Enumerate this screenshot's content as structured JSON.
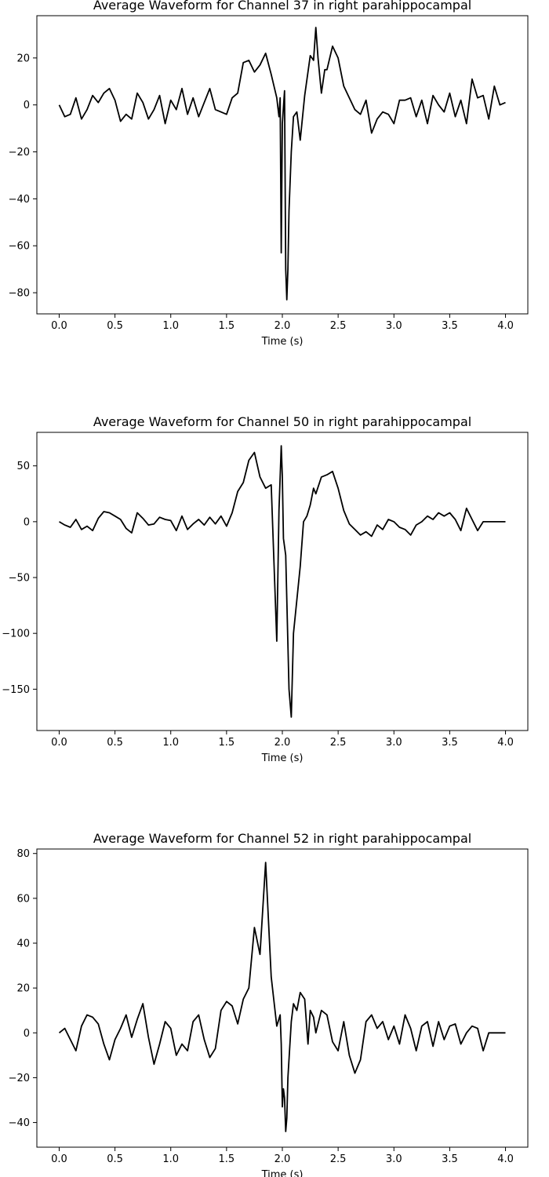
{
  "chart_data": [
    {
      "type": "line",
      "title": "Average Waveform for Channel 37 in  right parahippocampal",
      "xlabel": "Time (s)",
      "ylabel": "",
      "xlim": [
        -0.2,
        4.2
      ],
      "ylim": [
        -89,
        38
      ],
      "xticks": [
        0.0,
        0.5,
        1.0,
        1.5,
        2.0,
        2.5,
        3.0,
        3.5,
        4.0
      ],
      "xtick_labels": [
        "0.0",
        "0.5",
        "1.0",
        "1.5",
        "2.0",
        "2.5",
        "3.0",
        "3.5",
        "4.0"
      ],
      "yticks": [
        20,
        0,
        -20,
        -40,
        -60,
        -80
      ],
      "ytick_labels": [
        "20",
        "0",
        "−20",
        "−40",
        "−60",
        "−80"
      ],
      "grid": false,
      "series": [
        {
          "color": "#000000",
          "x": [
            0.0,
            0.05,
            0.1,
            0.15,
            0.2,
            0.25,
            0.3,
            0.35,
            0.4,
            0.45,
            0.5,
            0.55,
            0.6,
            0.65,
            0.7,
            0.75,
            0.8,
            0.85,
            0.9,
            0.95,
            1.0,
            1.05,
            1.1,
            1.15,
            1.2,
            1.25,
            1.3,
            1.35,
            1.4,
            1.45,
            1.5,
            1.55,
            1.6,
            1.65,
            1.7,
            1.75,
            1.8,
            1.85,
            1.9,
            1.95,
            1.97,
            1.98,
            1.99,
            2.0,
            2.02,
            2.03,
            2.04,
            2.05,
            2.06,
            2.08,
            2.1,
            2.13,
            2.16,
            2.2,
            2.25,
            2.28,
            2.3,
            2.32,
            2.35,
            2.38,
            2.4,
            2.45,
            2.5,
            2.55,
            2.6,
            2.65,
            2.7,
            2.75,
            2.8,
            2.85,
            2.9,
            2.95,
            3.0,
            3.05,
            3.1,
            3.15,
            3.2,
            3.25,
            3.3,
            3.35,
            3.4,
            3.45,
            3.5,
            3.55,
            3.6,
            3.65,
            3.7,
            3.75,
            3.8,
            3.85,
            3.9,
            3.95,
            4.0
          ],
          "values": [
            0,
            -5,
            -4,
            3,
            -6,
            -2,
            4,
            1,
            5,
            7,
            2,
            -7,
            -4,
            -6,
            5,
            1,
            -6,
            -2,
            4,
            -8,
            2,
            -2,
            7,
            -4,
            3,
            -5,
            1,
            7,
            -2,
            -3,
            -4,
            3,
            5,
            18,
            19,
            14,
            17,
            22,
            13,
            3,
            -5,
            3,
            -63,
            -8,
            6,
            -70,
            -83,
            -70,
            -45,
            -20,
            -5,
            -3,
            -15,
            4,
            21,
            19,
            33,
            20,
            5,
            15,
            15,
            25,
            20,
            8,
            3,
            -2,
            -4,
            2,
            -12,
            -6,
            -3,
            -4,
            -8,
            2,
            2,
            3,
            -5,
            2,
            -8,
            4,
            0,
            -3,
            5,
            -5,
            2,
            -8,
            11,
            3,
            4,
            -6,
            8,
            0,
            1
          ]
        }
      ]
    },
    {
      "type": "line",
      "title": "Average Waveform for Channel 50 in  right parahippocampal",
      "xlabel": "Time (s)",
      "ylabel": "",
      "xlim": [
        -0.2,
        4.2
      ],
      "ylim": [
        -187,
        80
      ],
      "xticks": [
        0.0,
        0.5,
        1.0,
        1.5,
        2.0,
        2.5,
        3.0,
        3.5,
        4.0
      ],
      "xtick_labels": [
        "0.0",
        "0.5",
        "1.0",
        "1.5",
        "2.0",
        "2.5",
        "3.0",
        "3.5",
        "4.0"
      ],
      "yticks": [
        50,
        0,
        -50,
        -100,
        -150
      ],
      "ytick_labels": [
        "50",
        "0",
        "−50",
        "−100",
        "−150"
      ],
      "grid": false,
      "series": [
        {
          "color": "#000000",
          "x": [
            0.0,
            0.05,
            0.1,
            0.15,
            0.2,
            0.25,
            0.3,
            0.35,
            0.4,
            0.45,
            0.5,
            0.55,
            0.6,
            0.65,
            0.7,
            0.75,
            0.8,
            0.85,
            0.9,
            0.95,
            1.0,
            1.05,
            1.1,
            1.15,
            1.2,
            1.25,
            1.3,
            1.35,
            1.4,
            1.45,
            1.5,
            1.55,
            1.6,
            1.65,
            1.7,
            1.75,
            1.8,
            1.85,
            1.9,
            1.95,
            1.97,
            1.99,
            2.0,
            2.01,
            2.03,
            2.05,
            2.06,
            2.08,
            2.1,
            2.13,
            2.16,
            2.19,
            2.22,
            2.25,
            2.28,
            2.3,
            2.35,
            2.4,
            2.45,
            2.5,
            2.55,
            2.6,
            2.65,
            2.7,
            2.75,
            2.8,
            2.85,
            2.9,
            2.95,
            3.0,
            3.05,
            3.1,
            3.15,
            3.2,
            3.25,
            3.3,
            3.35,
            3.4,
            3.45,
            3.5,
            3.55,
            3.6,
            3.65,
            3.7,
            3.75,
            3.8,
            3.85,
            3.9,
            3.95,
            4.0
          ],
          "values": [
            0,
            -3,
            -5,
            2,
            -7,
            -4,
            -8,
            3,
            9,
            8,
            5,
            2,
            -6,
            -10,
            8,
            3,
            -3,
            -2,
            4,
            2,
            1,
            -8,
            5,
            -7,
            -2,
            2,
            -3,
            4,
            -2,
            5,
            -4,
            8,
            27,
            35,
            55,
            62,
            40,
            30,
            33,
            -107,
            10,
            68,
            40,
            -15,
            -30,
            -110,
            -150,
            -175,
            -100,
            -70,
            -40,
            0,
            5,
            15,
            30,
            25,
            40,
            42,
            45,
            30,
            10,
            -2,
            -7,
            -12,
            -9,
            -13,
            -3,
            -7,
            2,
            0,
            -5,
            -7,
            -12,
            -3,
            0,
            5,
            2,
            8,
            5,
            8,
            2,
            -8,
            12,
            2,
            -8,
            0,
            0,
            0,
            0,
            0
          ]
        }
      ]
    },
    {
      "type": "line",
      "title": "Average Waveform for Channel 52 in  right parahippocampal",
      "xlabel": "Time (s)",
      "ylabel": "",
      "xlim": [
        -0.2,
        4.2
      ],
      "ylim": [
        -51,
        82
      ],
      "xticks": [
        0.0,
        0.5,
        1.0,
        1.5,
        2.0,
        2.5,
        3.0,
        3.5,
        4.0
      ],
      "xtick_labels": [
        "0.0",
        "0.5",
        "1.0",
        "1.5",
        "2.0",
        "2.5",
        "3.0",
        "3.5",
        "4.0"
      ],
      "yticks": [
        80,
        60,
        40,
        20,
        0,
        -20,
        -40
      ],
      "ytick_labels": [
        "80",
        "60",
        "40",
        "20",
        "0",
        "−20",
        "−40"
      ],
      "grid": false,
      "series": [
        {
          "color": "#000000",
          "x": [
            0.0,
            0.05,
            0.1,
            0.15,
            0.2,
            0.25,
            0.3,
            0.35,
            0.4,
            0.45,
            0.5,
            0.55,
            0.6,
            0.65,
            0.7,
            0.75,
            0.8,
            0.85,
            0.9,
            0.95,
            1.0,
            1.05,
            1.1,
            1.15,
            1.2,
            1.25,
            1.3,
            1.35,
            1.4,
            1.45,
            1.5,
            1.55,
            1.6,
            1.65,
            1.7,
            1.75,
            1.8,
            1.85,
            1.9,
            1.95,
            1.98,
            1.99,
            2.0,
            2.01,
            2.02,
            2.03,
            2.04,
            2.05,
            2.08,
            2.1,
            2.13,
            2.16,
            2.2,
            2.23,
            2.25,
            2.28,
            2.3,
            2.35,
            2.4,
            2.45,
            2.5,
            2.55,
            2.6,
            2.65,
            2.7,
            2.75,
            2.8,
            2.85,
            2.9,
            2.95,
            3.0,
            3.05,
            3.1,
            3.15,
            3.2,
            3.25,
            3.3,
            3.35,
            3.4,
            3.45,
            3.5,
            3.55,
            3.6,
            3.65,
            3.7,
            3.75,
            3.8,
            3.85,
            3.9,
            3.95,
            4.0
          ],
          "values": [
            0,
            2,
            -3,
            -8,
            3,
            8,
            7,
            4,
            -5,
            -12,
            -3,
            2,
            8,
            -2,
            6,
            13,
            -2,
            -14,
            -5,
            5,
            2,
            -10,
            -5,
            -8,
            5,
            8,
            -3,
            -11,
            -7,
            10,
            14,
            12,
            4,
            15,
            20,
            47,
            35,
            76,
            25,
            3,
            8,
            -5,
            -33,
            -25,
            -29,
            -44,
            -38,
            -20,
            5,
            13,
            10,
            18,
            15,
            -5,
            10,
            7,
            0,
            10,
            8,
            -4,
            -8,
            5,
            -10,
            -18,
            -12,
            5,
            8,
            2,
            5,
            -3,
            3,
            -5,
            8,
            2,
            -8,
            3,
            5,
            -6,
            5,
            -3,
            3,
            4,
            -5,
            0,
            3,
            2,
            -8,
            0,
            0,
            0,
            0
          ]
        }
      ]
    }
  ]
}
